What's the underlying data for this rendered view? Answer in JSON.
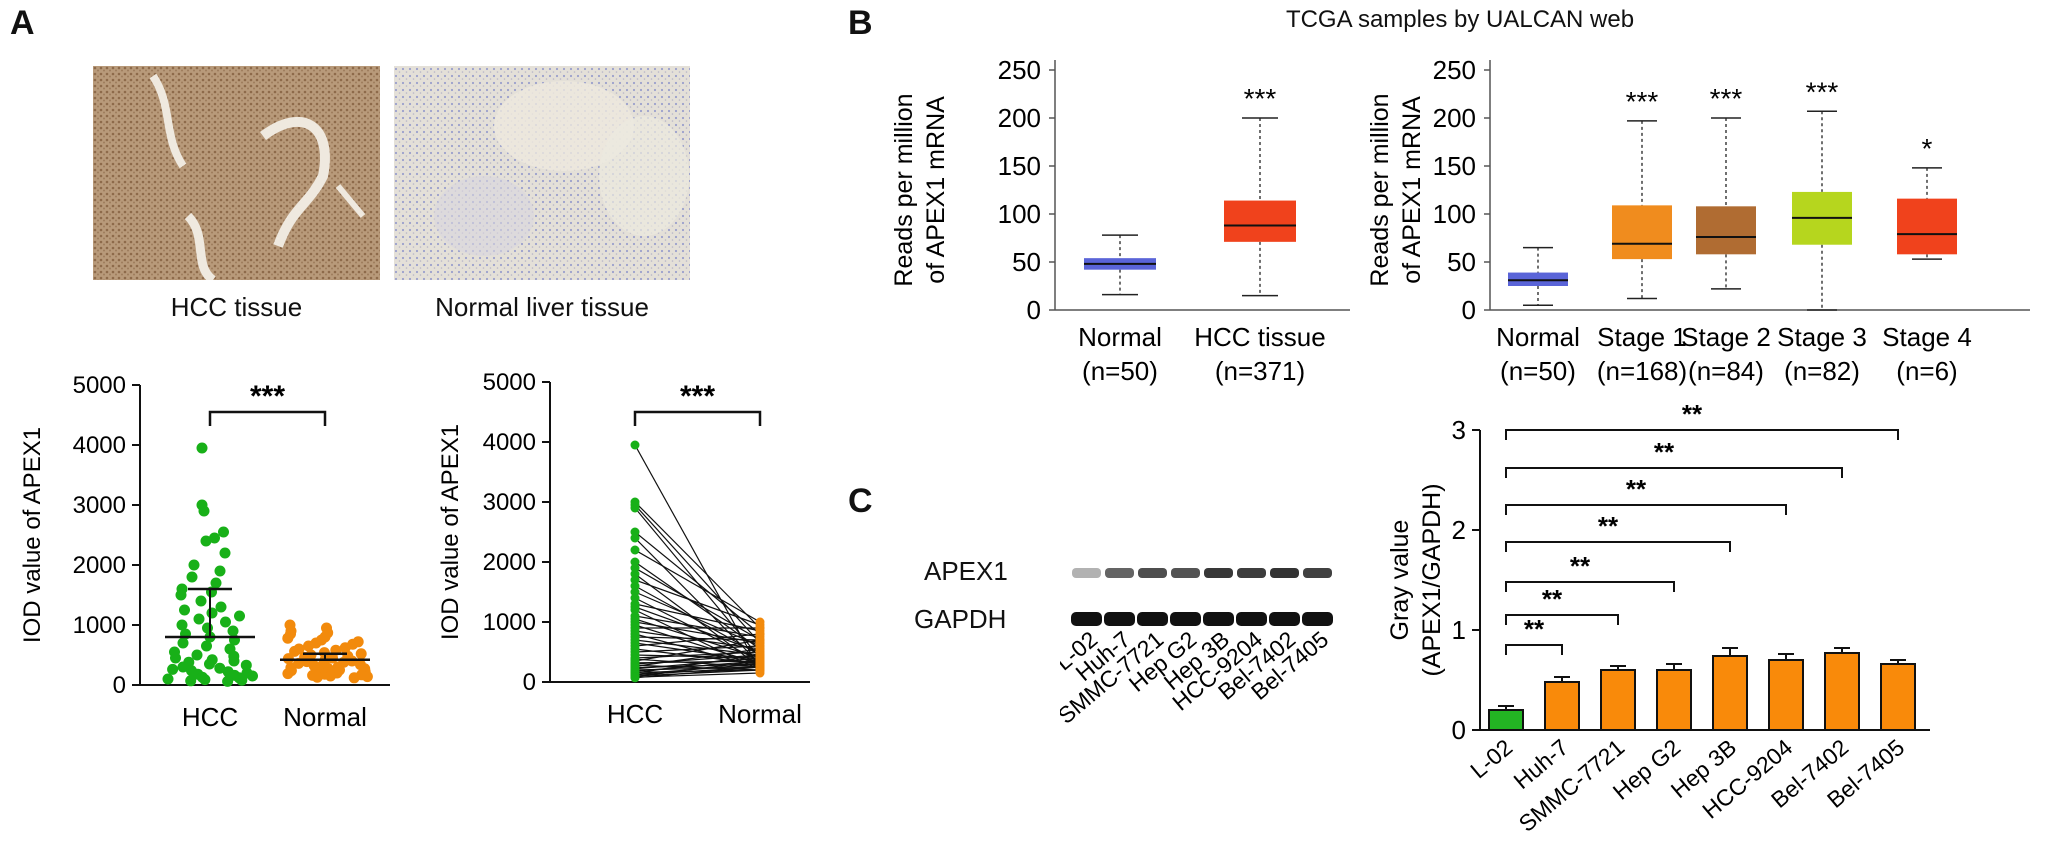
{
  "panel_labels": {
    "a": "A",
    "b": "B",
    "c": "C"
  },
  "panel_a": {
    "images": [
      {
        "caption": "HCC tissue"
      },
      {
        "caption": "Normal liver tissue"
      }
    ]
  },
  "panel_b": {
    "header": "TCGA samples by UALCAN web"
  },
  "panel_c": {
    "blot_rows": [
      "APEX1",
      "GAPDH"
    ],
    "lanes": [
      "L-02",
      "Huh-7",
      "SMMC-7721",
      "Hep G2",
      "Hep 3B",
      "HCC-9204",
      "Bel-7402",
      "Bel-7405"
    ]
  },
  "colors": {
    "green": "#18b018",
    "orange": "#f28a0c",
    "box_blue": "#5a64d8",
    "box_red": "#f0421c",
    "stage_orange": "#f08c1e",
    "stage_brown": "#b06c32",
    "stage_lime": "#b6d61e",
    "bar_orange": "#f98a0a",
    "bar_green": "#23b523"
  },
  "chart_data": [
    {
      "id": "a_scatter",
      "type": "scatter",
      "ylabel": "IOD value of APEX1",
      "categories": [
        "HCC",
        "Normal"
      ],
      "ylim": [
        0,
        5000
      ],
      "yticks": [
        "0",
        "1000",
        "2000",
        "3000",
        "4000",
        "5000"
      ],
      "series": [
        {
          "values": [
            3950,
            3000,
            2900,
            2550,
            2450,
            2400,
            2200,
            2000,
            1900,
            1800,
            1700,
            1600,
            1550,
            1500,
            1400,
            1300,
            1250,
            1200,
            1150,
            1100,
            1050,
            1000,
            950,
            900,
            850,
            800,
            750,
            700,
            650,
            600,
            550,
            500,
            480,
            450,
            420,
            400,
            380,
            350,
            330,
            300,
            280,
            260,
            240,
            220,
            200,
            180,
            160,
            150,
            130,
            120,
            100,
            90,
            80,
            70,
            60
          ]
        },
        {
          "values": [
            1000,
            950,
            900,
            870,
            850,
            800,
            780,
            750,
            720,
            700,
            680,
            650,
            620,
            600,
            580,
            560,
            540,
            520,
            500,
            480,
            460,
            450,
            440,
            420,
            400,
            390,
            380,
            360,
            350,
            340,
            320,
            300,
            290,
            280,
            270,
            260,
            250,
            240,
            230,
            220,
            210,
            200,
            190,
            180,
            170,
            160,
            150,
            140,
            130,
            120
          ]
        }
      ],
      "summary": [
        {
          "mean": 800,
          "upper": 1600
        },
        {
          "mean": 420,
          "upper": 520
        }
      ],
      "significance": "***"
    },
    {
      "id": "a_paired",
      "type": "line",
      "ylabel": "IOD value of APEX1",
      "categories": [
        "HCC",
        "Normal"
      ],
      "ylim": [
        0,
        5000
      ],
      "yticks": [
        "0",
        "1000",
        "2000",
        "3000",
        "4000",
        "5000"
      ],
      "pairs": [
        [
          3950,
          200
        ],
        [
          3000,
          900
        ],
        [
          2950,
          650
        ],
        [
          2900,
          400
        ],
        [
          2500,
          800
        ],
        [
          2400,
          300
        ],
        [
          2200,
          1000
        ],
        [
          2000,
          550
        ],
        [
          1900,
          700
        ],
        [
          1800,
          250
        ],
        [
          1700,
          950
        ],
        [
          1600,
          450
        ],
        [
          1500,
          600
        ],
        [
          1400,
          350
        ],
        [
          1300,
          850
        ],
        [
          1250,
          500
        ],
        [
          1200,
          200
        ],
        [
          1100,
          750
        ],
        [
          1050,
          400
        ],
        [
          1000,
          650
        ],
        [
          950,
          300
        ],
        [
          900,
          900
        ],
        [
          850,
          550
        ],
        [
          800,
          250
        ],
        [
          750,
          700
        ],
        [
          700,
          450
        ],
        [
          650,
          350
        ],
        [
          600,
          800
        ],
        [
          550,
          300
        ],
        [
          500,
          600
        ],
        [
          450,
          400
        ],
        [
          400,
          500
        ],
        [
          380,
          250
        ],
        [
          350,
          700
        ],
        [
          320,
          350
        ],
        [
          300,
          450
        ],
        [
          280,
          200
        ],
        [
          260,
          550
        ],
        [
          240,
          300
        ],
        [
          220,
          400
        ],
        [
          200,
          250
        ],
        [
          180,
          350
        ],
        [
          160,
          200
        ],
        [
          150,
          450
        ],
        [
          130,
          300
        ],
        [
          120,
          250
        ],
        [
          100,
          200
        ],
        [
          90,
          350
        ],
        [
          80,
          150
        ],
        [
          70,
          250
        ]
      ],
      "significance": "***"
    },
    {
      "id": "b_box1",
      "type": "box",
      "ylabel": [
        "Reads per million",
        "of APEX1 mRNA"
      ],
      "yticks": [
        "0",
        "50",
        "100",
        "150",
        "200",
        "250"
      ],
      "ylim": [
        0,
        250
      ],
      "categories": [
        {
          "name": "Normal",
          "n": "(n=50)"
        },
        {
          "name": "HCC tissue",
          "n": "(n=371)"
        }
      ],
      "boxes": [
        {
          "min": 16,
          "q1": 42,
          "median": 48,
          "q3": 54,
          "max": 78
        },
        {
          "min": 15,
          "q1": 71,
          "median": 88,
          "q3": 114,
          "max": 200
        }
      ],
      "significance": [
        "",
        "***"
      ]
    },
    {
      "id": "b_box2",
      "type": "box",
      "ylabel": [
        "Reads per million",
        "of APEX1 mRNA"
      ],
      "yticks": [
        "0",
        "50",
        "100",
        "150",
        "200",
        "250"
      ],
      "ylim": [
        0,
        250
      ],
      "categories": [
        {
          "name": "Normal",
          "n": "(n=50)"
        },
        {
          "name": "Stage 1",
          "n": "(n=168)"
        },
        {
          "name": "Stage 2",
          "n": "(n=84)"
        },
        {
          "name": "Stage 3",
          "n": "(n=82)"
        },
        {
          "name": "Stage 4",
          "n": "(n=6)"
        }
      ],
      "boxes": [
        {
          "min": 5,
          "q1": 25,
          "median": 31,
          "q3": 39,
          "max": 65
        },
        {
          "min": 12,
          "q1": 53,
          "median": 69,
          "q3": 109,
          "max": 197
        },
        {
          "min": 22,
          "q1": 58,
          "median": 76,
          "q3": 108,
          "max": 200
        },
        {
          "min": 0,
          "q1": 68,
          "median": 96,
          "q3": 123,
          "max": 207
        },
        {
          "min": 53,
          "q1": 58,
          "median": 79,
          "q3": 116,
          "max": 148
        }
      ],
      "significance": [
        "",
        "***",
        "***",
        "***",
        "*"
      ]
    },
    {
      "id": "c_bar",
      "type": "bar",
      "ylabel": [
        "Gray value",
        "(APEX1/GAPDH)"
      ],
      "yticks": [
        "0",
        "1",
        "2",
        "3"
      ],
      "ylim": [
        0,
        3
      ],
      "categories": [
        "L-02",
        "Huh-7",
        "SMMC-7721",
        "Hep G2",
        "Hep 3B",
        "HCC-9204",
        "Bel-7402",
        "Bel-7405"
      ],
      "values": [
        0.2,
        0.48,
        0.6,
        0.6,
        0.74,
        0.7,
        0.77,
        0.66
      ],
      "errors": [
        0.04,
        0.05,
        0.04,
        0.06,
        0.08,
        0.06,
        0.05,
        0.04
      ],
      "significance": [
        "**",
        "**",
        "**",
        "**",
        "**",
        "**",
        "**"
      ]
    }
  ]
}
